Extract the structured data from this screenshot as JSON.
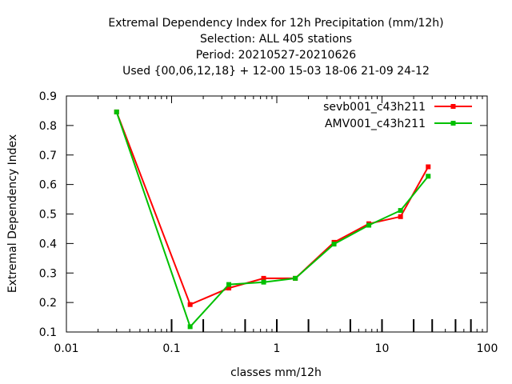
{
  "chart_data": {
    "type": "line",
    "title_lines": [
      "Extremal Dependency Index  for 12h Precipitation (mm/12h)",
      "Selection: ALL    405 stations",
      "Period: 20210527-20210626",
      "Used {00,06,12,18} + 12-00 15-03 18-06 21-09 24-12"
    ],
    "xlabel": "classes mm/12h",
    "ylabel": "Extremal Dependency Index",
    "xscale": "log",
    "xlim": [
      0.01,
      100
    ],
    "ylim": [
      0.1,
      0.9
    ],
    "x_ticks": [
      {
        "value": 0.01,
        "label": "0.01"
      },
      {
        "value": 0.1,
        "label": "0.1"
      },
      {
        "value": 1,
        "label": "1"
      },
      {
        "value": 10,
        "label": "10"
      },
      {
        "value": 100,
        "label": "100"
      }
    ],
    "y_ticks": [
      {
        "value": 0.1,
        "label": "0.1"
      },
      {
        "value": 0.2,
        "label": "0.2"
      },
      {
        "value": 0.3,
        "label": "0.3"
      },
      {
        "value": 0.4,
        "label": "0.4"
      },
      {
        "value": 0.5,
        "label": "0.5"
      },
      {
        "value": 0.6,
        "label": "0.6"
      },
      {
        "value": 0.7,
        "label": "0.7"
      },
      {
        "value": 0.8,
        "label": "0.8"
      },
      {
        "value": 0.9,
        "label": "0.9"
      }
    ],
    "class_boundaries": [
      0.1,
      0.2,
      0.5,
      1,
      2,
      5,
      10,
      20,
      30,
      50,
      70
    ],
    "legend_position": "top-right",
    "series": [
      {
        "name": "sevb001_c43h211",
        "color": "#ff0000",
        "points": [
          {
            "x": 0.03,
            "y": 0.846
          },
          {
            "x": 0.15,
            "y": 0.193
          },
          {
            "x": 0.35,
            "y": 0.249
          },
          {
            "x": 0.75,
            "y": 0.282
          },
          {
            "x": 1.5,
            "y": 0.282
          },
          {
            "x": 3.5,
            "y": 0.404
          },
          {
            "x": 7.5,
            "y": 0.467
          },
          {
            "x": 15,
            "y": 0.491
          },
          {
            "x": 27.5,
            "y": 0.66
          }
        ]
      },
      {
        "name": "AMV001_c43h211",
        "color": "#00c000",
        "points": [
          {
            "x": 0.03,
            "y": 0.846
          },
          {
            "x": 0.15,
            "y": 0.118
          },
          {
            "x": 0.35,
            "y": 0.261
          },
          {
            "x": 0.75,
            "y": 0.269
          },
          {
            "x": 1.5,
            "y": 0.282
          },
          {
            "x": 3.5,
            "y": 0.398
          },
          {
            "x": 7.5,
            "y": 0.462
          },
          {
            "x": 15,
            "y": 0.512
          },
          {
            "x": 27.5,
            "y": 0.628
          }
        ]
      }
    ]
  }
}
